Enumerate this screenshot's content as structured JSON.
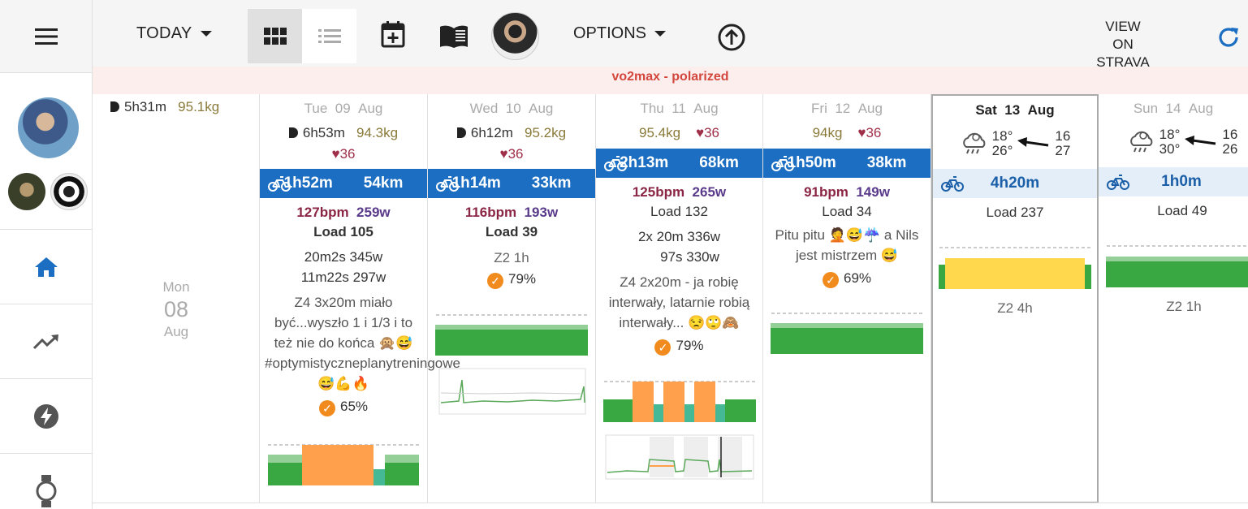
{
  "header": {
    "today_label": "TODAY",
    "options_label": "OPTIONS",
    "strava_line1": "VIEW ON",
    "strava_line2": "STRAVA"
  },
  "banner": {
    "text": "vo2max - polarized"
  },
  "colors": {
    "accent": "#1b6ec2",
    "ride_dark": "#1b6ec2",
    "ride_light": "#e3eef9",
    "complete": "#f18b1d",
    "z2": "#3aa842",
    "z4": "#ffa04d",
    "z3": "#45b895",
    "z2planned": "#ffd84d"
  },
  "days": {
    "mon": {
      "dow": "Mon",
      "date": "08",
      "month": "Aug",
      "sleep": "5h31m",
      "weight": "95.1kg"
    },
    "tue": {
      "dow": "Tue",
      "date": "09",
      "month": "Aug",
      "sleep": "6h53m",
      "weight": "94.3kg",
      "hr": "36",
      "ride_time": "1h52m",
      "ride_dist": "54km",
      "bpm": "127bpm",
      "watts": "259w",
      "load": "Load 105",
      "int1": "20m2s  345w",
      "int2": "11m22s  297w",
      "note": "Z4 3x20m miało być...wyszło 1 i 1/3 i to też nie do końca 🙊😅 #optymistyczneplanytreningowe 😅💪🔥",
      "completion": "65%"
    },
    "wed": {
      "dow": "Wed",
      "date": "10",
      "month": "Aug",
      "sleep": "6h12m",
      "weight": "95.2kg",
      "hr": "36",
      "ride_time": "1h14m",
      "ride_dist": "33km",
      "bpm": "116bpm",
      "watts": "193w",
      "load": "Load 39",
      "plan": "Z2 1h",
      "completion": "79%"
    },
    "thu": {
      "dow": "Thu",
      "date": "11",
      "month": "Aug",
      "weight": "95.4kg",
      "hr": "36",
      "ride_time": "2h13m",
      "ride_dist": "68km",
      "bpm": "125bpm",
      "watts": "265w",
      "load": "Load 132",
      "int1": "2x  20m  336w",
      "int2": "97s  330w",
      "note": "Z4 2x20m - ja robię interwały, latarnie robią interwały... 😒🙄🙈",
      "completion": "79%"
    },
    "fri": {
      "dow": "Fri",
      "date": "12",
      "month": "Aug",
      "weight": "94kg",
      "hr": "36",
      "ride_time": "1h50m",
      "ride_dist": "38km",
      "bpm": "91bpm",
      "watts": "149w",
      "load": "Load 34",
      "note": "Pitu pitu 🤦😅☔ a Nils jest mistrzem 😅",
      "completion": "69%"
    },
    "sat": {
      "dow": "Sat",
      "date": "13",
      "month": "Aug",
      "temp_low": "18°",
      "temp_high": "26°",
      "wind1": "16",
      "wind2": "27",
      "ride_time": "4h20m",
      "load": "Load 237",
      "plan": "Z2 4h"
    },
    "sun": {
      "dow": "Sun",
      "date": "14",
      "month": "Aug",
      "temp_low": "18°",
      "temp_high": "30°",
      "wind1": "16",
      "wind2": "26",
      "ride_time": "1h0m",
      "load": "Load 49",
      "plan": "Z2 1h"
    }
  }
}
